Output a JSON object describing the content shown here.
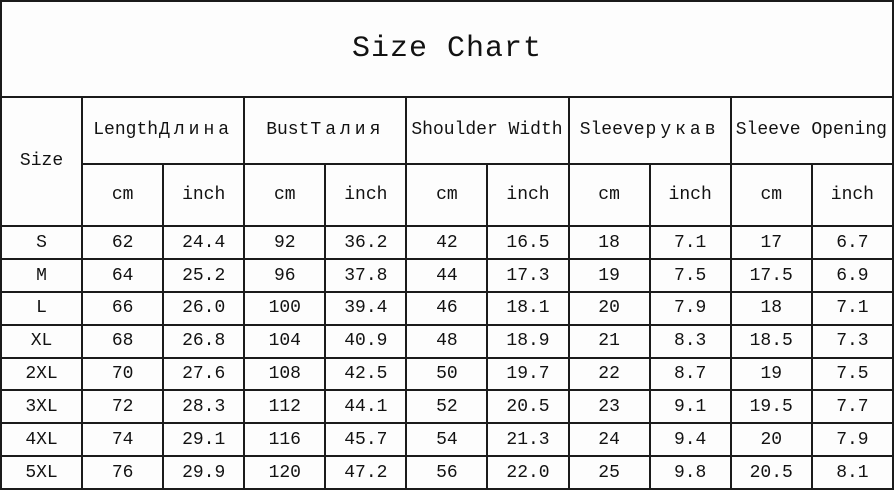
{
  "title": "Size Chart",
  "colors": {
    "background": "#fdfdfd",
    "text": "#121212",
    "border": "#1b1b1b"
  },
  "table": {
    "size_header": "Size",
    "group_headers": [
      {
        "en": "Length",
        "ru": "Длина"
      },
      {
        "en": "Bust",
        "ru": "Талия"
      },
      {
        "en": "Shoulder Width",
        "ru": ""
      },
      {
        "en": "Sleeve",
        "ru": "рукав"
      },
      {
        "en": "Sleeve Opening",
        "ru": ""
      }
    ],
    "units_row": [
      "cm",
      "inch",
      "cm",
      "inch",
      "cm",
      "inch",
      "cm",
      "inch",
      "cm",
      "inch"
    ],
    "rows": [
      {
        "size": "S",
        "values": [
          "62",
          "24.4",
          "92",
          "36.2",
          "42",
          "16.5",
          "18",
          "7.1",
          "17",
          "6.7"
        ]
      },
      {
        "size": "M",
        "values": [
          "64",
          "25.2",
          "96",
          "37.8",
          "44",
          "17.3",
          "19",
          "7.5",
          "17.5",
          "6.9"
        ]
      },
      {
        "size": "L",
        "values": [
          "66",
          "26.0",
          "100",
          "39.4",
          "46",
          "18.1",
          "20",
          "7.9",
          "18",
          "7.1"
        ]
      },
      {
        "size": "XL",
        "values": [
          "68",
          "26.8",
          "104",
          "40.9",
          "48",
          "18.9",
          "21",
          "8.3",
          "18.5",
          "7.3"
        ]
      },
      {
        "size": "2XL",
        "values": [
          "70",
          "27.6",
          "108",
          "42.5",
          "50",
          "19.7",
          "22",
          "8.7",
          "19",
          "7.5"
        ]
      },
      {
        "size": "3XL",
        "values": [
          "72",
          "28.3",
          "112",
          "44.1",
          "52",
          "20.5",
          "23",
          "9.1",
          "19.5",
          "7.7"
        ]
      },
      {
        "size": "4XL",
        "values": [
          "74",
          "29.1",
          "116",
          "45.7",
          "54",
          "21.3",
          "24",
          "9.4",
          "20",
          "7.9"
        ]
      },
      {
        "size": "5XL",
        "values": [
          "76",
          "29.9",
          "120",
          "47.2",
          "56",
          "22.0",
          "25",
          "9.8",
          "20.5",
          "8.1"
        ]
      }
    ]
  },
  "chart_data": {
    "type": "table",
    "title": "Size Chart",
    "columns": [
      "Size",
      "Length Длина (cm)",
      "Length Длина (inch)",
      "Bust Талия (cm)",
      "Bust Талия (inch)",
      "Shoulder Width (cm)",
      "Shoulder Width (inch)",
      "Sleeve рукав (cm)",
      "Sleeve рукав (inch)",
      "Sleeve Opening (cm)",
      "Sleeve Opening (inch)"
    ],
    "rows": [
      [
        "S",
        62,
        24.4,
        92,
        36.2,
        42,
        16.5,
        18,
        7.1,
        17,
        6.7
      ],
      [
        "M",
        64,
        25.2,
        96,
        37.8,
        44,
        17.3,
        19,
        7.5,
        17.5,
        6.9
      ],
      [
        "L",
        66,
        26.0,
        100,
        39.4,
        46,
        18.1,
        20,
        7.9,
        18,
        7.1
      ],
      [
        "XL",
        68,
        26.8,
        104,
        40.9,
        48,
        18.9,
        21,
        8.3,
        18.5,
        7.3
      ],
      [
        "2XL",
        70,
        27.6,
        108,
        42.5,
        50,
        19.7,
        22,
        8.7,
        19,
        7.5
      ],
      [
        "3XL",
        72,
        28.3,
        112,
        44.1,
        52,
        20.5,
        23,
        9.1,
        19.5,
        7.7
      ],
      [
        "4XL",
        74,
        29.1,
        116,
        45.7,
        54,
        21.3,
        24,
        9.4,
        20,
        7.9
      ],
      [
        "5XL",
        76,
        29.9,
        120,
        47.2,
        56,
        22.0,
        25,
        9.8,
        20.5,
        8.1
      ]
    ]
  }
}
